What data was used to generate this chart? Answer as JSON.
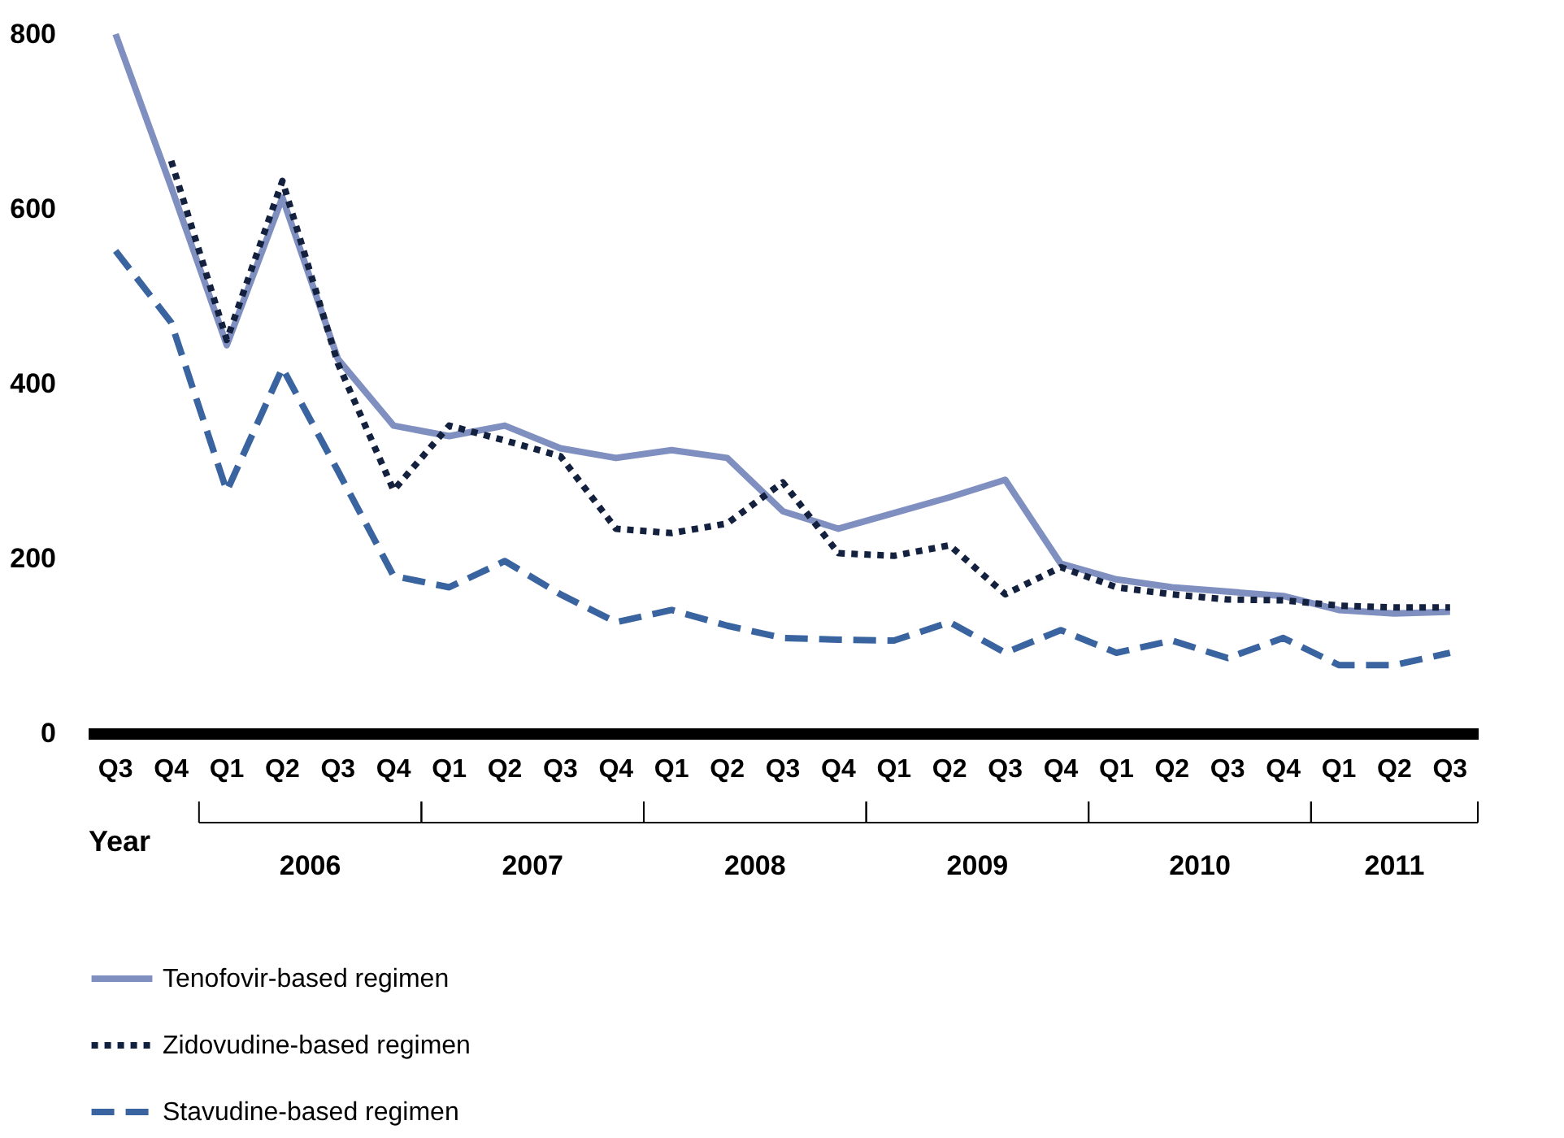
{
  "chart_data": {
    "type": "line",
    "xlabel": "Year",
    "categories": [
      "Q3",
      "Q4",
      "Q1",
      "Q2",
      "Q3",
      "Q4",
      "Q1",
      "Q2",
      "Q3",
      "Q4",
      "Q1",
      "Q2",
      "Q3",
      "Q4",
      "Q1",
      "Q2",
      "Q3",
      "Q4",
      "Q1",
      "Q2",
      "Q3",
      "Q4",
      "Q1",
      "Q2",
      "Q3"
    ],
    "annotations": [
      "2006",
      "2007",
      "2008",
      "2009",
      "2010",
      "2011"
    ],
    "ylim": [
      0,
      800
    ],
    "yticks": [
      0,
      200,
      400,
      600,
      800
    ],
    "grid": false,
    "legend": "bottom left",
    "marker": "none",
    "series": [
      {
        "name": "Tenofovir-based regimen",
        "color": "#7f8fc0",
        "line_style": "solid",
        "values": [
          800,
          625,
          444,
          613,
          428,
          352,
          340,
          352,
          326,
          315,
          324,
          315,
          254,
          234,
          252,
          270,
          290,
          194,
          176,
          167,
          162,
          157,
          141,
          137,
          139
        ]
      },
      {
        "name": "Zidovudine-based regimen",
        "color": "#13213f",
        "line_style": "dotted",
        "values": [
          null,
          655,
          450,
          632,
          423,
          278,
          352,
          335,
          317,
          234,
          229,
          240,
          287,
          206,
          203,
          215,
          159,
          190,
          167,
          159,
          153,
          152,
          146,
          144,
          144
        ]
      },
      {
        "name": "Stavudine-based regimen",
        "color": "#3a64a0",
        "line_style": "dashed",
        "values": [
          552,
          470,
          277,
          418,
          300,
          180,
          167,
          197,
          159,
          127,
          141,
          123,
          109,
          107,
          106,
          127,
          92,
          118,
          92,
          106,
          86,
          109,
          78,
          78,
          92
        ]
      }
    ]
  }
}
